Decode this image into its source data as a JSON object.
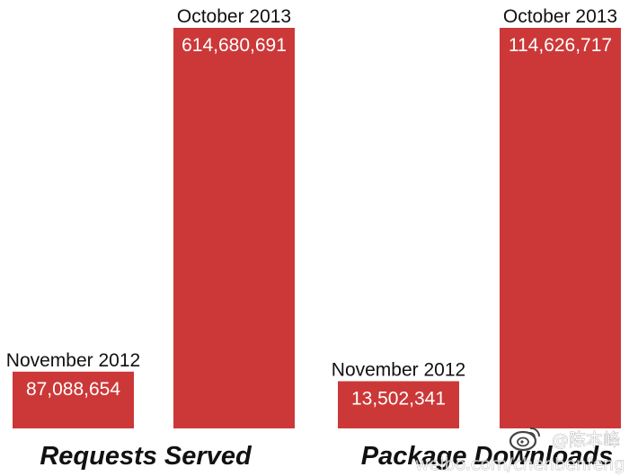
{
  "colors": {
    "bar": "#cc3838",
    "text": "#111111",
    "value_text": "#ffffff"
  },
  "chart_data": [
    {
      "type": "bar",
      "title": "Requests Served",
      "categories": [
        "November 2012",
        "October 2013"
      ],
      "values": [
        87088654,
        614680691
      ],
      "value_labels": [
        "87,088,654",
        "614,680,691"
      ],
      "ylim": [
        0,
        614680691
      ],
      "grid": false
    },
    {
      "type": "bar",
      "title": "Package Downloads",
      "categories": [
        "November 2012",
        "October 2013"
      ],
      "values": [
        13502341,
        114626717
      ],
      "value_labels": [
        "13,502,341",
        "114,626,717"
      ],
      "ylim": [
        0,
        114626717
      ],
      "grid": false
    }
  ],
  "watermark": {
    "name": "@陈本峰",
    "url": "weibo.com/chenbenfeng",
    "icon": "weibo-logo-icon"
  }
}
